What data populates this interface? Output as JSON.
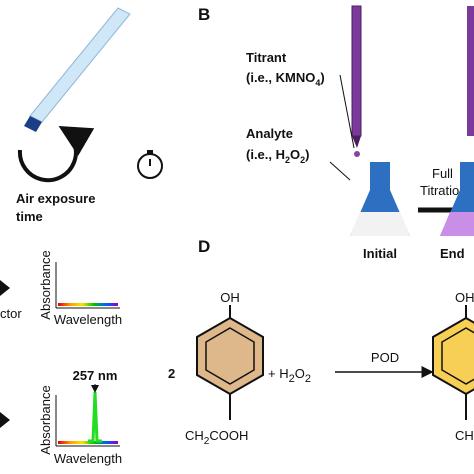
{
  "panel_a": {
    "caption_line1": "Air exposure",
    "caption_line2": "time"
  },
  "panel_b": {
    "letter": "B",
    "titrant": {
      "name": "Titrant",
      "formula_open": "(i.e., KMNO",
      "formula_sub": "4",
      "formula_close": ")"
    },
    "analyte": {
      "name": "Analyte",
      "formula_open": "(i.e., H",
      "formula_sub1": "2",
      "formula_mid": "O",
      "formula_sub2": "2",
      "formula_close": ")"
    },
    "arrow_line1": "Full",
    "arrow_line2": "Titration",
    "initial_label": "Initial",
    "end_label": "End"
  },
  "panel_c": {
    "side_label": "ctor",
    "spectrum_1": {
      "y_label": "Absorbance",
      "x_label": "Wavelength"
    },
    "spectrum_2": {
      "y_label": "Absorbance",
      "x_label": "Wavelength",
      "peak_label": "257 nm"
    }
  },
  "panel_d": {
    "letter": "D",
    "coefficient": "2",
    "reactant_top": "OH",
    "reactant_bottom_parts": [
      "CH",
      "2",
      "COOH"
    ],
    "plus_parts": [
      "+ H",
      "2",
      "O",
      "2"
    ],
    "catalyst": "POD",
    "product_top": "OH",
    "product_bottom": "CH"
  }
}
